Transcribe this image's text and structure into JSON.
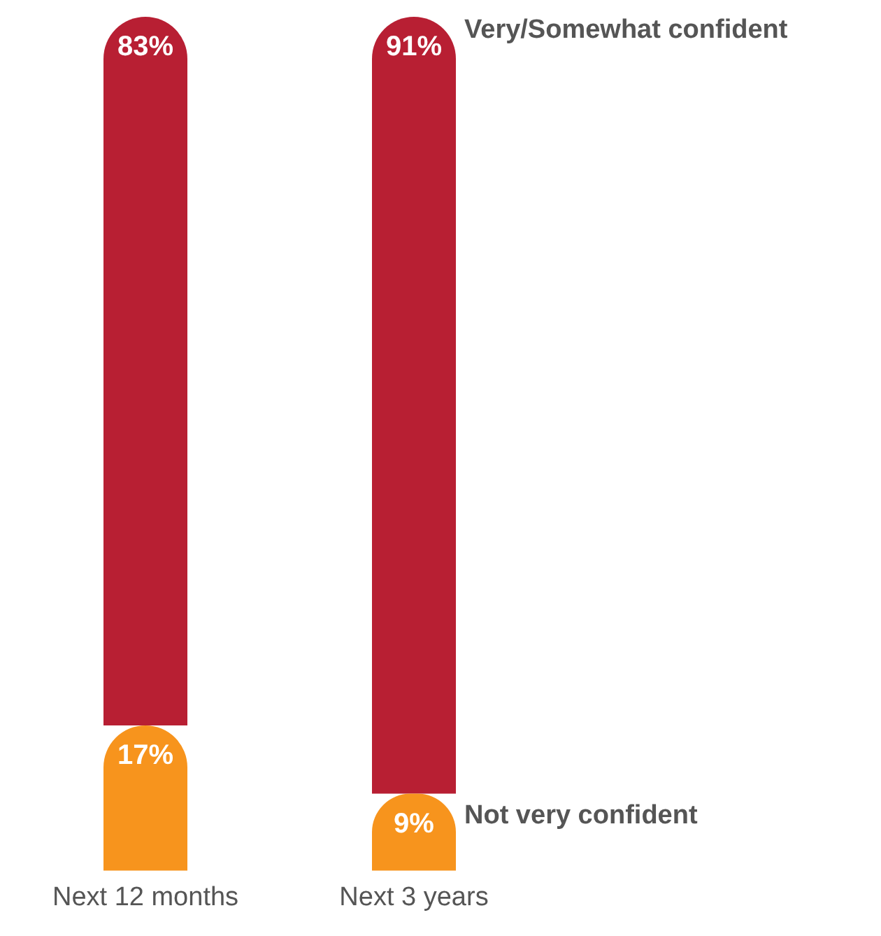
{
  "chart_data": {
    "type": "bar",
    "stacked": true,
    "categories": [
      "Next 12 months",
      "Next 3 years"
    ],
    "series": [
      {
        "name": "Not very confident",
        "color": "#f7941d",
        "values": [
          17,
          9
        ],
        "value_labels": [
          "17%",
          "9%"
        ]
      },
      {
        "name": "Very/Somewhat confident",
        "color": "#b81f33",
        "values": [
          83,
          91
        ],
        "value_labels": [
          "83%",
          "91%"
        ]
      }
    ],
    "ylim": [
      0,
      100
    ],
    "grid": false,
    "legend": false
  }
}
